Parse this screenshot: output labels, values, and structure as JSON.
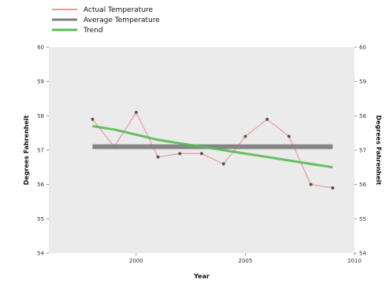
{
  "chart_data": {
    "type": "line",
    "title": "",
    "xlabel": "Year",
    "ylabel": "Degrees Fahrenheit",
    "xlim": [
      1996,
      2010
    ],
    "ylim": [
      54,
      60
    ],
    "xticks": [
      2000,
      2005,
      2010
    ],
    "yticks": [
      54,
      55,
      56,
      57,
      58,
      59,
      60
    ],
    "x": [
      1998,
      1999,
      2000,
      2001,
      2002,
      2003,
      2004,
      2005,
      2006,
      2007,
      2008,
      2009
    ],
    "series": [
      {
        "name": "Actual Temperature",
        "kind": "line-markers",
        "values": [
          57.9,
          57.1,
          58.1,
          56.8,
          56.9,
          56.9,
          56.6,
          57.4,
          57.9,
          57.4,
          56.0,
          55.9
        ],
        "color": "#e69a9a"
      },
      {
        "name": "Average Temperature",
        "kind": "line",
        "values": [
          57.1,
          57.1,
          57.1,
          57.1,
          57.1,
          57.1,
          57.1,
          57.1,
          57.1,
          57.1,
          57.1,
          57.1
        ],
        "color": "#808080"
      },
      {
        "name": "Trend",
        "kind": "line",
        "values": [
          57.7,
          57.6,
          57.45,
          57.3,
          57.2,
          57.1,
          57.0,
          56.9,
          56.8,
          56.7,
          56.6,
          56.5
        ],
        "color": "#55bb55"
      }
    ],
    "grid": false,
    "legend_position": "top-left",
    "plot_background": "#ebebeb",
    "secondary_y_axis": true
  }
}
